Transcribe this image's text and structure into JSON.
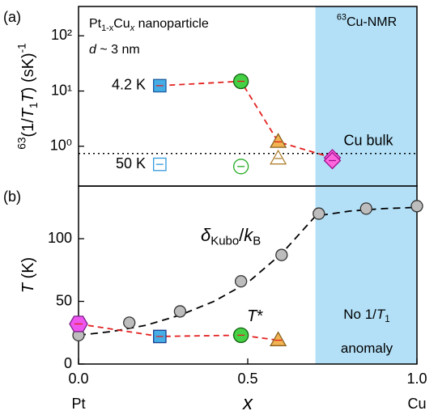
{
  "chart_data": [
    {
      "type": "scatter",
      "label": "(a)",
      "log_y": true,
      "ylabel": [
        {
          "t": "63",
          "s": "sup"
        },
        {
          "t": "(1/"
        },
        {
          "t": "T",
          "s": "i"
        },
        {
          "t": "1",
          "s": "sub"
        },
        {
          "t": "T",
          "s": "i"
        },
        {
          "t": ") (sK)"
        },
        {
          "t": "-1",
          "s": "sup"
        }
      ],
      "xlim": [
        0,
        1
      ],
      "ylim": [
        0.19,
        340
      ],
      "yticks": [
        {
          "value": 1,
          "label": "10⁰"
        },
        {
          "value": 10,
          "label": "10¹"
        },
        {
          "value": 100,
          "label": "10²"
        }
      ],
      "shaded_region": {
        "x": [
          0.7,
          1.0
        ],
        "color": "#b3e0f7"
      },
      "annotations": [
        [
          {
            "t": "Pt"
          },
          {
            "t": "1-x",
            "s": "sub"
          },
          {
            "t": "Cu"
          },
          {
            "t": "x",
            "s": "sub-i"
          },
          {
            "t": " nanoparticle"
          }
        ],
        [
          {
            "t": "d",
            "s": "i"
          },
          {
            "t": " ~ 3 nm"
          }
        ],
        [
          {
            "t": "63",
            "s": "sup"
          },
          {
            "t": "Cu-NMR"
          }
        ]
      ],
      "reference_line": {
        "label": "Cu bulk",
        "value": 0.74,
        "color": "#000000"
      },
      "series": [
        {
          "name": "4.2 K",
          "filled": true,
          "line_color": "#e32020",
          "x": [
            0.24,
            0.48,
            0.59,
            0.75
          ],
          "values": [
            12.5,
            15,
            1.2,
            0.62
          ],
          "markers": [
            "square",
            "circle",
            "triangle",
            "diamond"
          ],
          "colors": [
            "#45aee6",
            "#45d145",
            "#f2b452",
            "#ff66dd"
          ],
          "edges": [
            "#1a5c9e",
            "#106010",
            "#8a6020",
            "#a01090"
          ]
        },
        {
          "name": "50 K",
          "filled": false,
          "x": [
            0.24,
            0.48,
            0.59,
            0.75
          ],
          "values": [
            0.47,
            0.43,
            0.6,
            0.55
          ],
          "markers": [
            "square",
            "circle",
            "triangle",
            "diamond"
          ],
          "colors": [
            "#ffffff",
            "#ffffff",
            "#ffffff",
            "#ff66dd"
          ],
          "edges": [
            "#3399dd",
            "#22aa22",
            "#b08030",
            "#a01090"
          ]
        }
      ]
    },
    {
      "type": "scatter",
      "label": "(b)",
      "ylabel": [
        {
          "t": "T",
          "s": "i"
        },
        {
          "t": " (K)"
        }
      ],
      "xlabel": [
        {
          "t": "x",
          "s": "i"
        }
      ],
      "xlim": [
        0,
        1
      ],
      "ylim": [
        0,
        142
      ],
      "xticks": [
        {
          "value": 0,
          "label": "0.0"
        },
        {
          "value": 0.5,
          "label": "0.5"
        },
        {
          "value": 1,
          "label": "1.0"
        }
      ],
      "x_end_labels": [
        "Pt",
        "Cu"
      ],
      "yticks": [
        0,
        50,
        100
      ],
      "shaded_region": {
        "x": [
          0.7,
          1.0
        ],
        "color": "#b3e0f7"
      },
      "annotations": [
        [
          {
            "t": "No 1/"
          },
          {
            "t": "T",
            "s": "i"
          },
          {
            "t": "1",
            "s": "sub"
          }
        ],
        [
          {
            "t": "anomaly"
          }
        ]
      ],
      "series": [
        {
          "name": [
            {
              "t": "δ",
              "s": "i"
            },
            {
              "t": "Kubo",
              "s": "sub"
            },
            {
              "t": "/"
            },
            {
              "t": "k",
              "s": "i"
            },
            {
              "t": "B",
              "s": "sub"
            }
          ],
          "filled": true,
          "marker": "circle",
          "color": "#bdbdbd",
          "edge": "#333333",
          "x": [
            0,
            0.15,
            0.3,
            0.48,
            0.6,
            0.71,
            0.85,
            1.0
          ],
          "values": [
            23,
            33,
            42,
            66,
            87,
            120,
            124,
            126
          ],
          "fit": {
            "color": "#000000",
            "x": [
              0,
              0.1,
              0.2,
              0.3,
              0.4,
              0.5,
              0.6,
              0.7,
              0.8,
              0.9,
              1.0
            ],
            "values": [
              23,
              26,
              31,
              39,
              50,
              65,
              88,
              118,
              122,
              124,
              125
            ]
          }
        },
        {
          "name": [
            {
              "t": "T",
              "s": "i"
            },
            {
              "t": "*"
            }
          ],
          "filled": true,
          "line_color": "#e32020",
          "x": [
            0,
            0.24,
            0.48,
            0.59
          ],
          "values": [
            32,
            22,
            23,
            19
          ],
          "markers": [
            "hexagon",
            "square",
            "circle",
            "triangle"
          ],
          "colors": [
            "#ee55ee",
            "#45aee6",
            "#45d145",
            "#f2b452"
          ],
          "edges": [
            "#7a1f8a",
            "#1a3c8e",
            "#106010",
            "#8a6020"
          ]
        }
      ]
    }
  ]
}
